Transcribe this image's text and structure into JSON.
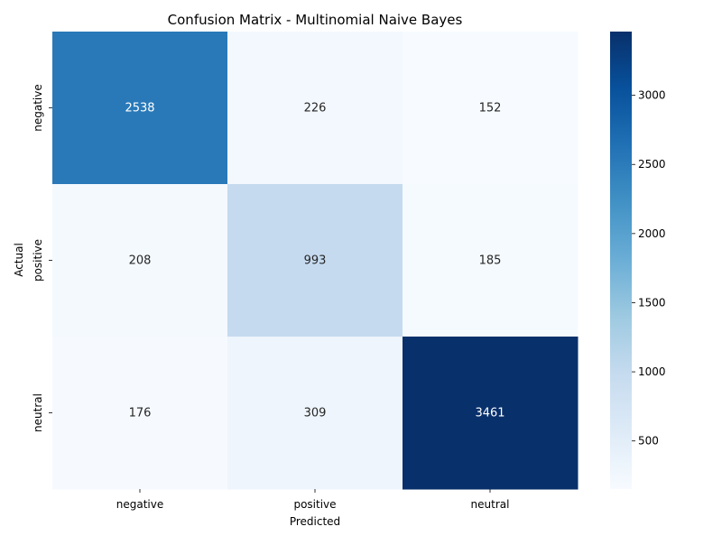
{
  "chart_data": {
    "type": "heatmap",
    "title": "Confusion Matrix - Multinomial Naive Bayes",
    "xlabel": "Predicted",
    "ylabel": "Actual",
    "x_categories": [
      "negative",
      "positive",
      "neutral"
    ],
    "y_categories": [
      "negative",
      "positive",
      "neutral"
    ],
    "values": [
      [
        2538,
        226,
        152
      ],
      [
        208,
        993,
        185
      ],
      [
        176,
        309,
        3461
      ]
    ],
    "colormap": "Blues",
    "color_range": [
      152,
      3461
    ],
    "colorbar_ticks": [
      "500",
      "1000",
      "1500",
      "2000",
      "2500",
      "3000"
    ]
  }
}
